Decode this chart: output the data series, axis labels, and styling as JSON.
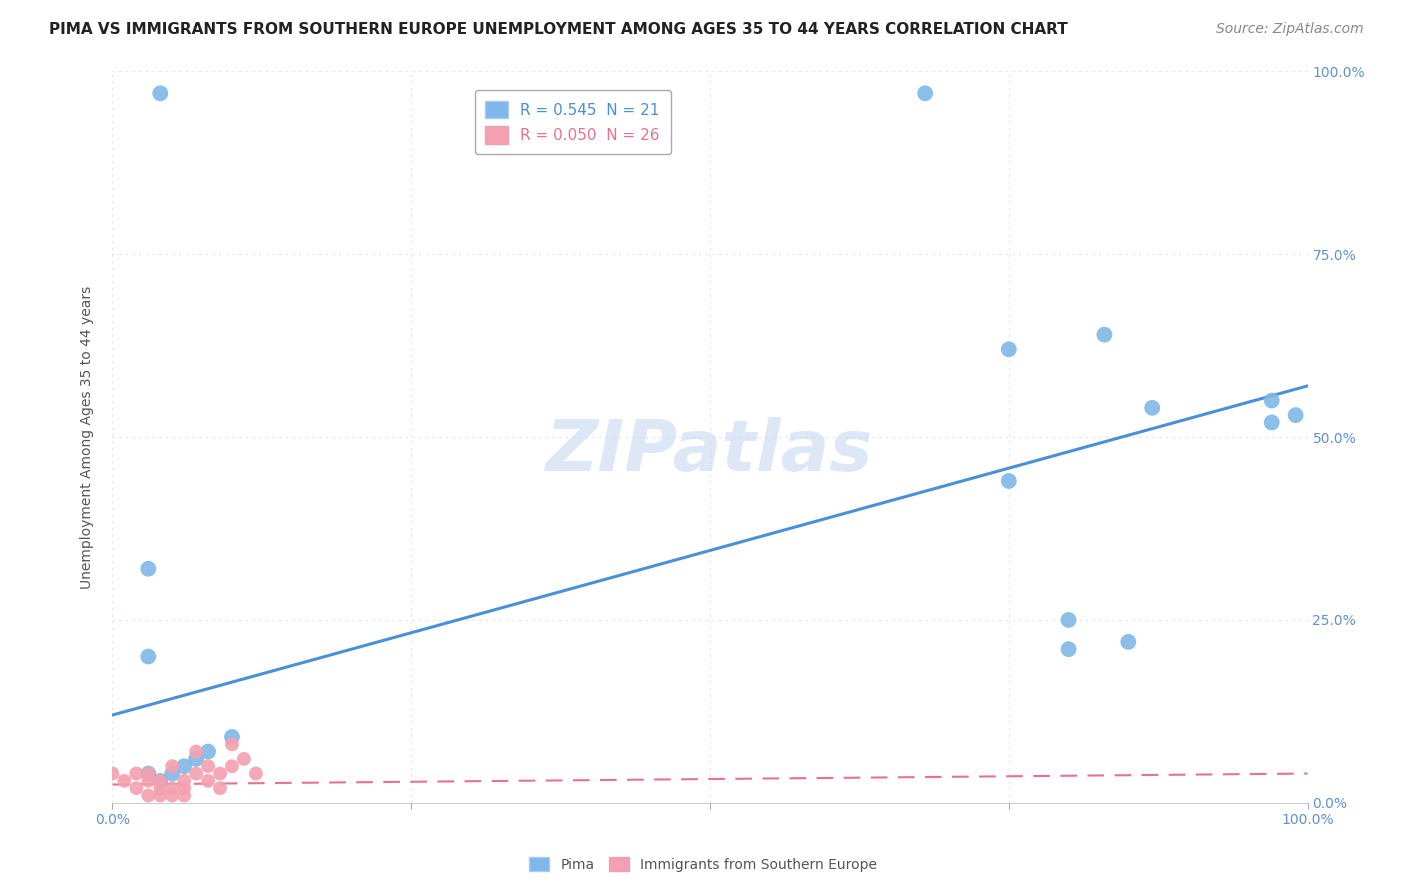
{
  "title": "PIMA VS IMMIGRANTS FROM SOUTHERN EUROPE UNEMPLOYMENT AMONG AGES 35 TO 44 YEARS CORRELATION CHART",
  "source": "Source: ZipAtlas.com",
  "ylabel": "Unemployment Among Ages 35 to 44 years",
  "watermark": "ZIPatlas",
  "legend_entries": [
    {
      "label": "R = 0.545  N = 21",
      "color": "#7eb8e8"
    },
    {
      "label": "R = 0.050  N = 26",
      "color": "#f4a0b0"
    }
  ],
  "xlim": [
    0,
    1.0
  ],
  "ylim": [
    0,
    1.0
  ],
  "pima_points": [
    [
      0.04,
      0.97
    ],
    [
      0.68,
      0.97
    ],
    [
      0.03,
      0.32
    ],
    [
      0.03,
      0.2
    ],
    [
      0.03,
      0.04
    ],
    [
      0.04,
      0.03
    ],
    [
      0.05,
      0.04
    ],
    [
      0.06,
      0.05
    ],
    [
      0.07,
      0.06
    ],
    [
      0.08,
      0.07
    ],
    [
      0.1,
      0.09
    ],
    [
      0.75,
      0.62
    ],
    [
      0.83,
      0.64
    ],
    [
      0.75,
      0.44
    ],
    [
      0.8,
      0.25
    ],
    [
      0.85,
      0.22
    ],
    [
      0.8,
      0.21
    ],
    [
      0.87,
      0.54
    ],
    [
      0.97,
      0.55
    ],
    [
      0.99,
      0.53
    ],
    [
      0.97,
      0.52
    ]
  ],
  "immigrant_points": [
    [
      0.0,
      0.04
    ],
    [
      0.01,
      0.03
    ],
    [
      0.02,
      0.04
    ],
    [
      0.02,
      0.02
    ],
    [
      0.03,
      0.03
    ],
    [
      0.03,
      0.01
    ],
    [
      0.03,
      0.04
    ],
    [
      0.04,
      0.03
    ],
    [
      0.04,
      0.02
    ],
    [
      0.04,
      0.01
    ],
    [
      0.05,
      0.02
    ],
    [
      0.05,
      0.01
    ],
    [
      0.05,
      0.05
    ],
    [
      0.06,
      0.03
    ],
    [
      0.06,
      0.02
    ],
    [
      0.06,
      0.01
    ],
    [
      0.07,
      0.04
    ],
    [
      0.07,
      0.07
    ],
    [
      0.08,
      0.05
    ],
    [
      0.08,
      0.03
    ],
    [
      0.09,
      0.04
    ],
    [
      0.09,
      0.02
    ],
    [
      0.1,
      0.05
    ],
    [
      0.1,
      0.08
    ],
    [
      0.11,
      0.06
    ],
    [
      0.12,
      0.04
    ]
  ],
  "pima_line": {
    "x0": 0.0,
    "y0": 0.12,
    "x1": 1.0,
    "y1": 0.57
  },
  "immigrant_line": {
    "x0": 0.0,
    "y0": 0.025,
    "x1": 1.0,
    "y1": 0.04
  },
  "pima_line_color": "#4a90d9",
  "immigrant_line_color": "#e87090",
  "pima_dot_color": "#7eb8e8",
  "immigrant_dot_color": "#f4a0b0",
  "grid_color": "#d8e4f0",
  "background_color": "#ffffff",
  "title_fontsize": 11,
  "source_fontsize": 10,
  "axis_label_fontsize": 10,
  "tick_fontsize": 10,
  "legend_fontsize": 11,
  "watermark_color": "#c8d8f0",
  "watermark_fontsize": 52
}
